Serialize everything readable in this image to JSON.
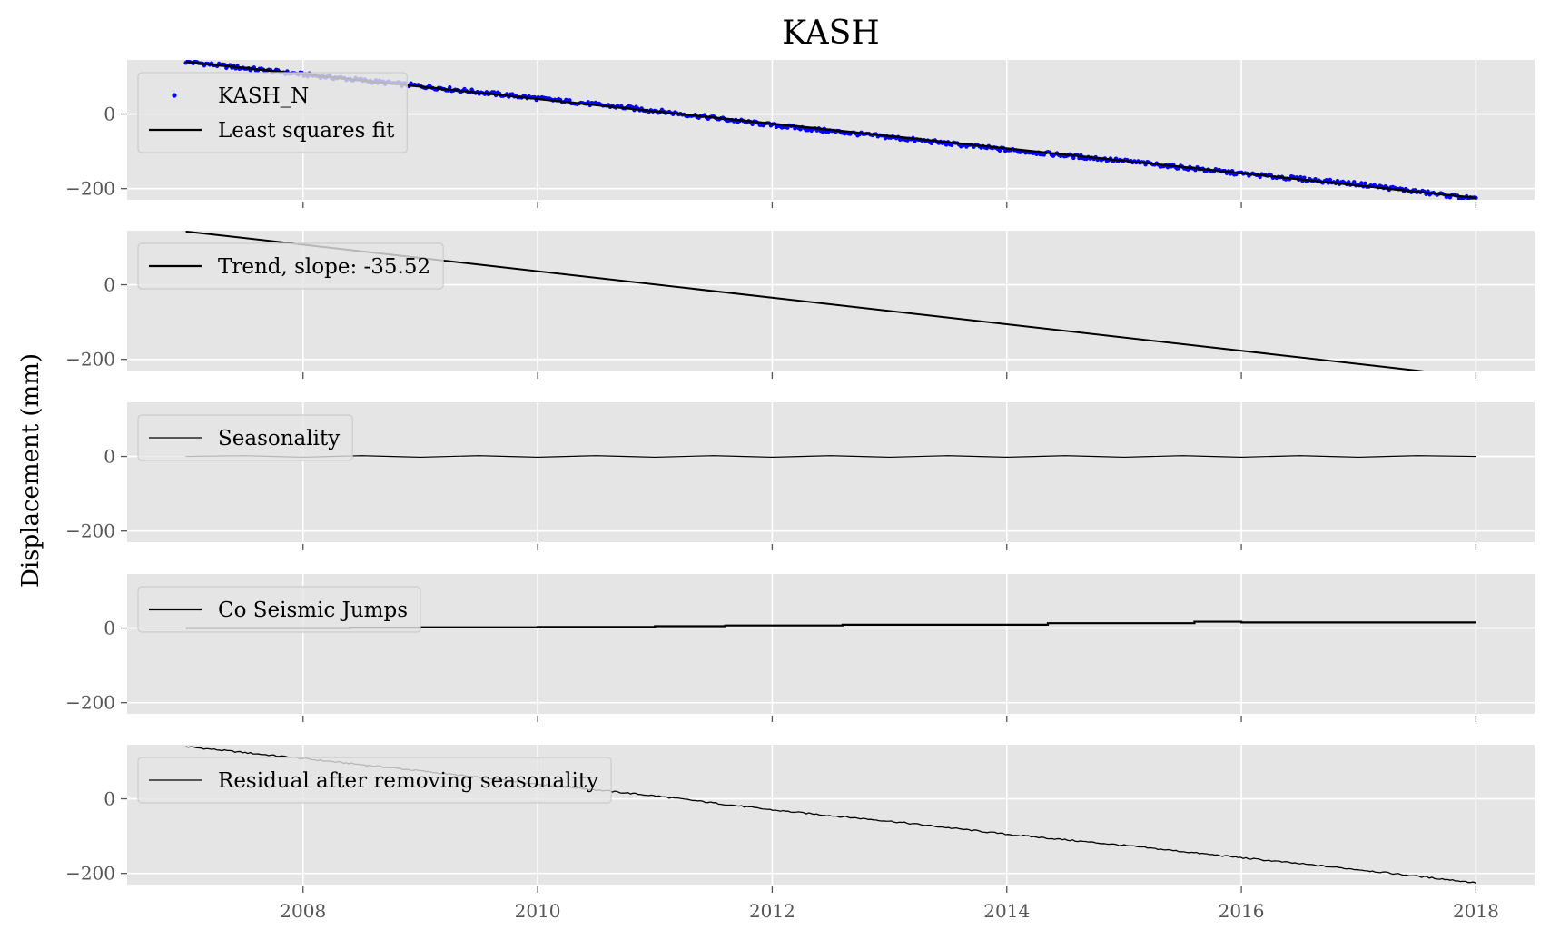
{
  "chart_data": {
    "type": "line",
    "title": "KASH",
    "ylabel": "Displacement (mm)",
    "xlim": [
      2006.5,
      2018.5
    ],
    "ylim": [
      -230,
      145
    ],
    "x_ticks": [
      2008,
      2010,
      2012,
      2014,
      2016,
      2018
    ],
    "x_tick_labels": [
      "2008",
      "2010",
      "2012",
      "2014",
      "2016",
      "2018"
    ],
    "y_ticks": [
      0,
      -200
    ],
    "y_tick_labels": [
      "0",
      "−200"
    ],
    "grid": true,
    "background": "#e5e5e5",
    "panels": [
      {
        "legend": "top-left",
        "series": [
          {
            "name": "KASH_N",
            "kind": "points",
            "color": "#0000ff",
            "x": [
              2007.0,
              2008.0,
              2009.0,
              2010.0,
              2011.0,
              2012.0,
              2013.0,
              2014.0,
              2015.0,
              2016.0,
              2017.0,
              2018.0
            ],
            "y": [
              140,
              106,
              75,
              42,
              9,
              -30,
              -62,
              -96,
              -126,
              -160,
              -188,
              -228
            ]
          },
          {
            "name": "Least squares fit",
            "kind": "line",
            "color": "#000000",
            "x": [
              2007.0,
              2018.0
            ],
            "y": [
              140,
              -225
            ]
          }
        ]
      },
      {
        "legend": "top-left",
        "series": [
          {
            "name": "Trend, slope: -35.52",
            "kind": "line",
            "color": "#000000",
            "x": [
              2007.0,
              2018.0
            ],
            "y": [
              143,
              -248
            ]
          }
        ]
      },
      {
        "legend": "top-left",
        "series": [
          {
            "name": "Seasonality",
            "kind": "line",
            "color": "#000000",
            "x": [
              2007.0,
              2007.5,
              2008.0,
              2008.5,
              2009.0,
              2009.5,
              2010.0,
              2010.5,
              2011.0,
              2011.5,
              2012.0,
              2012.5,
              2013.0,
              2013.5,
              2014.0,
              2014.5,
              2015.0,
              2015.5,
              2016.0,
              2016.5,
              2017.0,
              2017.5,
              2018.0
            ],
            "y": [
              0,
              2,
              -2,
              2,
              -2,
              2,
              -2,
              2,
              -2,
              2,
              -2,
              2,
              -2,
              2,
              -2,
              2,
              -2,
              2,
              -2,
              2,
              -2,
              2,
              0
            ]
          }
        ]
      },
      {
        "legend": "top-left",
        "series": [
          {
            "name": "Co Seismic Jumps",
            "kind": "step",
            "color": "#000000",
            "x": [
              2007.0,
              2008.4,
              2009.0,
              2010.0,
              2011.0,
              2011.6,
              2012.6,
              2014.35,
              2015.6,
              2016.0,
              2018.0
            ],
            "y": [
              0,
              1,
              2,
              3,
              5,
              7,
              9,
              13,
              17,
              15,
              15
            ]
          }
        ]
      },
      {
        "legend": "top-left",
        "series": [
          {
            "name": "Residual after removing seasonality",
            "kind": "line",
            "color": "#000000",
            "x": [
              2007.0,
              2008.0,
              2009.0,
              2010.0,
              2011.0,
              2012.0,
              2013.0,
              2014.0,
              2015.0,
              2016.0,
              2017.0,
              2018.0
            ],
            "y": [
              140,
              108,
              75,
              40,
              8,
              -30,
              -60,
              -95,
              -125,
              -158,
              -190,
              -225
            ]
          }
        ]
      }
    ]
  }
}
